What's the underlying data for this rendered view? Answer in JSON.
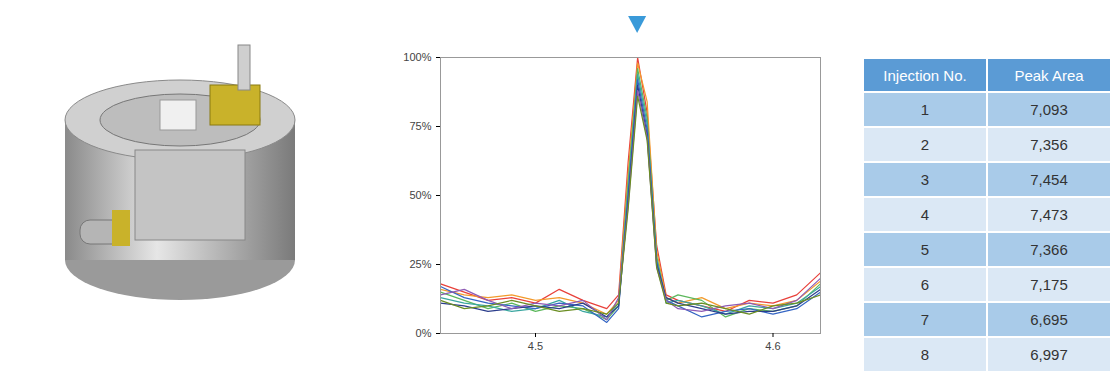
{
  "chart_data": {
    "type": "line",
    "x": [
      4.46,
      4.47,
      4.48,
      4.49,
      4.5,
      4.51,
      4.52,
      4.53,
      4.535,
      4.539,
      4.543,
      4.547,
      4.551,
      4.555,
      4.56,
      4.57,
      4.58,
      4.59,
      4.6,
      4.61,
      4.62
    ],
    "series": [
      {
        "color": "#e8403a",
        "values": [
          18,
          15,
          12,
          13,
          11,
          16,
          12,
          9,
          14,
          62,
          100,
          80,
          32,
          14,
          12,
          10,
          8,
          12,
          11,
          14,
          22
        ]
      },
      {
        "color": "#f39a2b",
        "values": [
          16,
          14,
          13,
          14,
          12,
          13,
          11,
          7,
          12,
          58,
          98,
          84,
          30,
          13,
          11,
          13,
          9,
          11,
          10,
          12,
          19
        ]
      },
      {
        "color": "#5cb85c",
        "values": [
          15,
          12,
          9,
          11,
          8,
          10,
          9,
          5,
          10,
          55,
          96,
          78,
          28,
          12,
          14,
          12,
          6,
          9,
          8,
          10,
          18
        ]
      },
      {
        "color": "#3aa6a0",
        "values": [
          13,
          11,
          10,
          8,
          9,
          12,
          8,
          6,
          11,
          52,
          94,
          76,
          27,
          11,
          12,
          10,
          7,
          10,
          9,
          11,
          17
        ]
      },
      {
        "color": "#3465c4",
        "values": [
          17,
          13,
          11,
          10,
          9,
          11,
          10,
          4,
          9,
          50,
          92,
          74,
          26,
          12,
          10,
          6,
          8,
          9,
          7,
          9,
          15
        ]
      },
      {
        "color": "#2c3e8c",
        "values": [
          11,
          10,
          8,
          9,
          10,
          9,
          11,
          6,
          10,
          48,
          90,
          72,
          25,
          13,
          11,
          9,
          7,
          8,
          8,
          10,
          16
        ]
      },
      {
        "color": "#8e5bb5",
        "values": [
          14,
          16,
          12,
          9,
          11,
          10,
          12,
          5,
          13,
          46,
          88,
          71,
          24,
          12,
          9,
          8,
          10,
          11,
          9,
          12,
          20
        ]
      },
      {
        "color": "#6b8e23",
        "values": [
          12,
          9,
          10,
          12,
          10,
          8,
          9,
          7,
          11,
          45,
          86,
          70,
          24,
          11,
          10,
          11,
          9,
          7,
          10,
          11,
          14
        ]
      }
    ],
    "xlim": [
      4.46,
      4.62
    ],
    "xticks": [
      4.5,
      4.6
    ],
    "ylim": [
      0,
      100
    ],
    "yticks": [
      {
        "value": 0,
        "label": "0%"
      },
      {
        "value": 25,
        "label": "25%"
      },
      {
        "value": 50,
        "label": "50%"
      },
      {
        "value": 75,
        "label": "75%"
      },
      {
        "value": 100,
        "label": "100%"
      }
    ],
    "grid": false
  },
  "table": {
    "header": [
      "Injection No.",
      "Peak Area"
    ],
    "rows": [
      [
        "1",
        "7,093"
      ],
      [
        "2",
        "7,356"
      ],
      [
        "3",
        "7,454"
      ],
      [
        "4",
        "7,473"
      ],
      [
        "5",
        "7,366"
      ],
      [
        "6",
        "7,175"
      ],
      [
        "7",
        "6,695"
      ],
      [
        "8",
        "6,997"
      ]
    ]
  }
}
